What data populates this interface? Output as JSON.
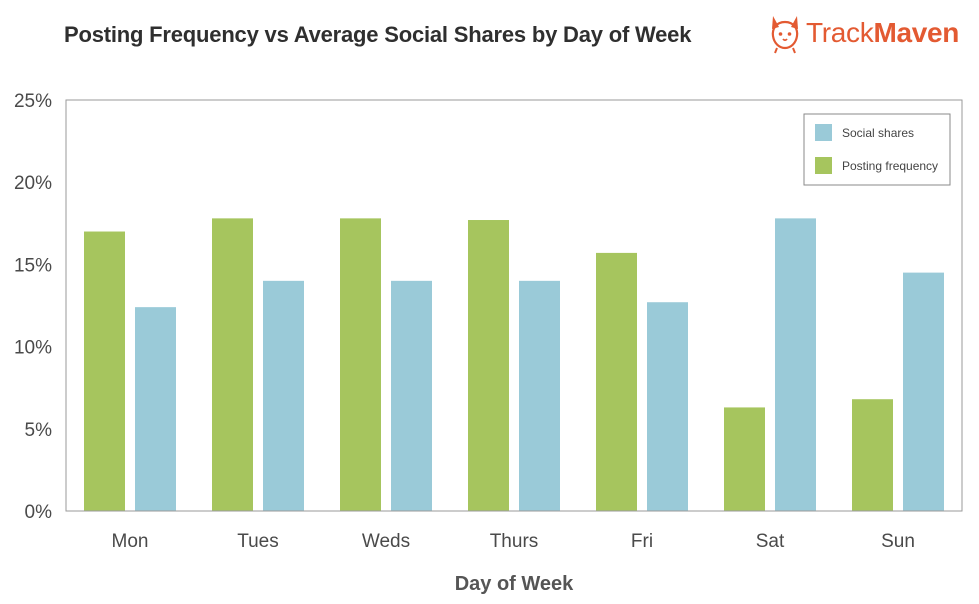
{
  "title": "Posting Frequency vs Average Social Shares by Day of Week",
  "brand": {
    "name_light": "Track",
    "name_bold": "Maven",
    "icon": "corgi-logo-icon",
    "color": "#e35a32"
  },
  "chart_data": {
    "type": "bar",
    "title": "Posting Frequency vs Average Social Shares by Day of Week",
    "xlabel": "Day of Week",
    "ylabel": "",
    "categories": [
      "Mon",
      "Tues",
      "Weds",
      "Thurs",
      "Fri",
      "Sat",
      "Sun"
    ],
    "ylim": [
      0,
      25
    ],
    "yticks": [
      0,
      5,
      10,
      15,
      20,
      25
    ],
    "ytick_labels": [
      "0%",
      "5%",
      "10%",
      "15%",
      "20%",
      "25%"
    ],
    "grid": false,
    "legend_position": "top-right",
    "series": [
      {
        "name": "Posting frequency",
        "color": "#a6c55e",
        "values": [
          17.0,
          17.8,
          17.8,
          17.7,
          15.7,
          6.3,
          6.8
        ]
      },
      {
        "name": "Social shares",
        "color": "#9acad8",
        "values": [
          12.4,
          14.0,
          14.0,
          14.0,
          12.7,
          17.8,
          14.5
        ]
      }
    ],
    "legend": [
      {
        "name": "Social shares",
        "color": "#9acad8"
      },
      {
        "name": "Posting frequency",
        "color": "#a6c55e"
      }
    ]
  }
}
